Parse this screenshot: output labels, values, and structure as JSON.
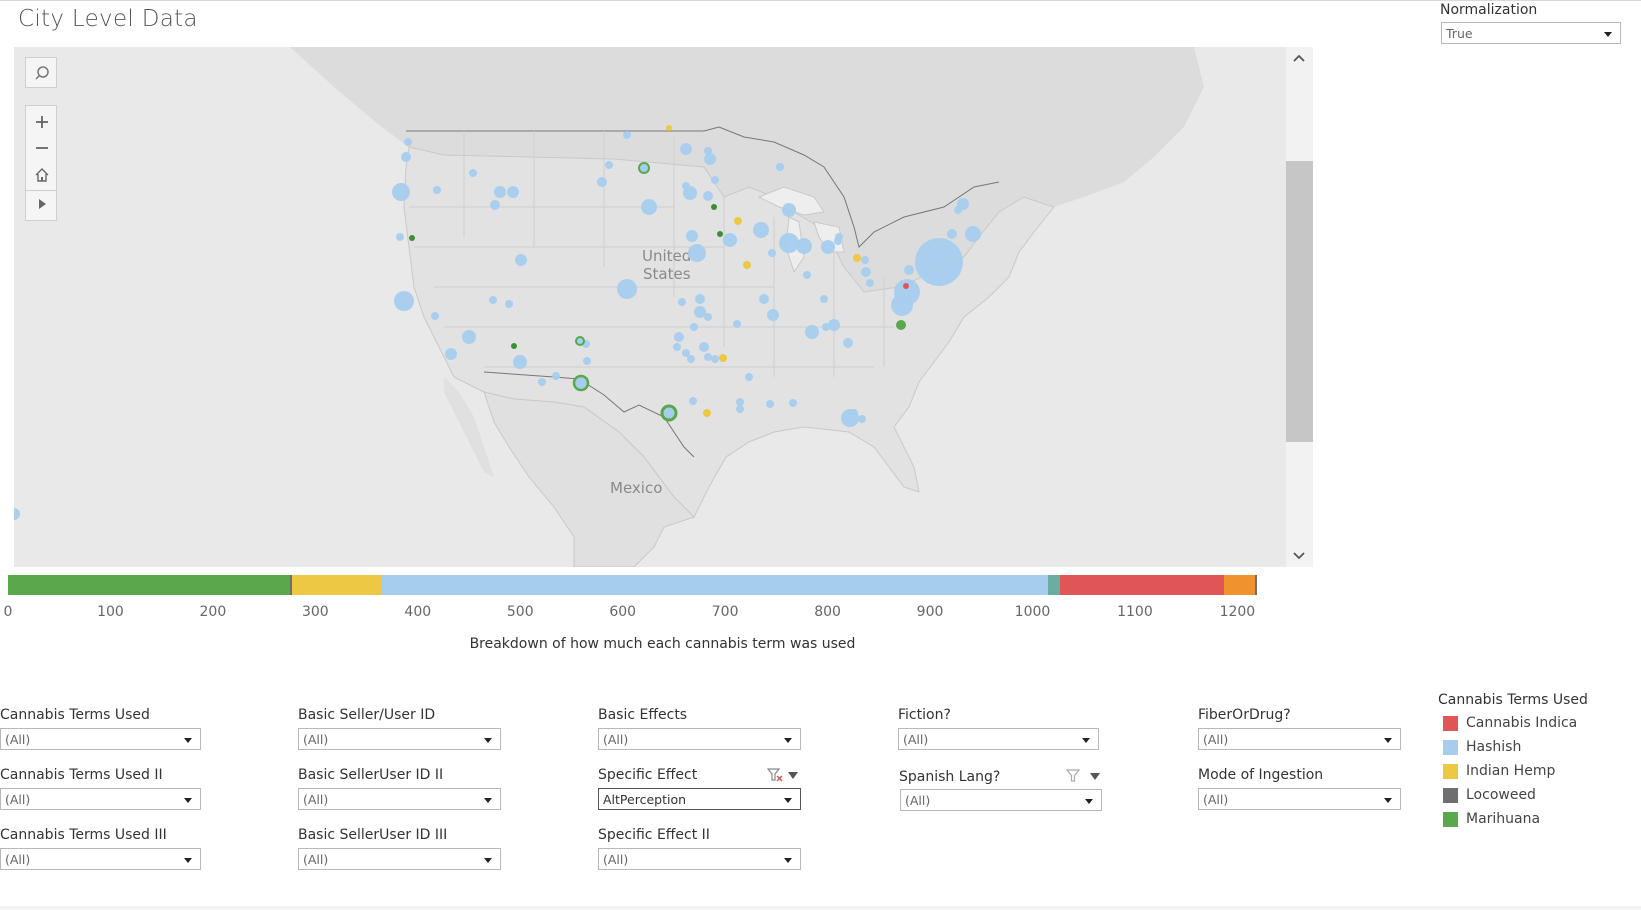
{
  "dashboard": {
    "title": "City Level Data"
  },
  "normalization": {
    "label": "Normalization",
    "value": "True"
  },
  "map": {
    "labels": {
      "united": "United",
      "states": "States",
      "mexico": "Mexico"
    },
    "tools": [
      "search-icon",
      "zoom-in-icon",
      "zoom-out-icon",
      "home-icon",
      "play-icon"
    ]
  },
  "colors": {
    "cannabis_indica": "#e05656",
    "hashish": "#a7cdee",
    "indian_hemp": "#edc845",
    "locoweed": "#6f6f6f",
    "marihuana": "#59a84b",
    "teal": "#6aaea0",
    "orange": "#f0922e"
  },
  "chart_data": {
    "type": "bar",
    "orientation": "horizontal-stacked",
    "title": "Breakdown of how much each cannabis term was used",
    "xlim": [
      0,
      1250
    ],
    "ticks": [
      "0",
      "100",
      "200",
      "300",
      "400",
      "500",
      "600",
      "700",
      "800",
      "900",
      "1000",
      "1100",
      "1200"
    ],
    "segments": [
      {
        "term": "Marihuana",
        "color": "#59a84b",
        "value": 275
      },
      {
        "term": "Locoweed",
        "color": "#6f6f6f",
        "value": 2
      },
      {
        "term": "Indian Hemp",
        "color": "#edc845",
        "value": 88
      },
      {
        "term": "Hashish",
        "color": "#a7cdee",
        "value": 650
      },
      {
        "term": "",
        "color": "#6aaea0",
        "value": 12
      },
      {
        "term": "Cannabis Indica",
        "color": "#e05656",
        "value": 160
      },
      {
        "term": "",
        "color": "#f0922e",
        "value": 30
      },
      {
        "term": "",
        "color": "#6f6f6f",
        "value": 2
      }
    ]
  },
  "filters": {
    "col1": [
      {
        "label": "Cannabis Terms Used",
        "value": "(All)"
      },
      {
        "label": "Cannabis Terms Used II",
        "value": "(All)"
      },
      {
        "label": "Cannabis Terms Used III",
        "value": "(All)"
      }
    ],
    "col2": [
      {
        "label": "Basic Seller/User ID",
        "value": "(All)"
      },
      {
        "label": "Basic SellerUser ID II",
        "value": "(All)"
      },
      {
        "label": "Basic SellerUser ID III",
        "value": "(All)"
      }
    ],
    "col3": [
      {
        "label": "Basic Effects",
        "value": "(All)"
      },
      {
        "label": "Specific Effect",
        "value": "AltPerception"
      },
      {
        "label": "Specific Effect II",
        "value": "(All)"
      }
    ],
    "col4": [
      {
        "label": "Fiction?",
        "value": "(All)"
      },
      {
        "label": "Spanish Lang?",
        "value": "(All)"
      }
    ],
    "col5": [
      {
        "label": "FiberOrDrug?",
        "value": "(All)"
      },
      {
        "label": "Mode of Ingestion",
        "value": "(All)"
      }
    ]
  },
  "legend": {
    "title": "Cannabis Terms Used",
    "items": [
      {
        "label": "Cannabis Indica",
        "color": "#e05656"
      },
      {
        "label": "Hashish",
        "color": "#a7cdee"
      },
      {
        "label": "Indian Hemp",
        "color": "#edc845"
      },
      {
        "label": "Locoweed",
        "color": "#6f6f6f"
      },
      {
        "label": "Marihuana",
        "color": "#59a84b"
      }
    ]
  }
}
